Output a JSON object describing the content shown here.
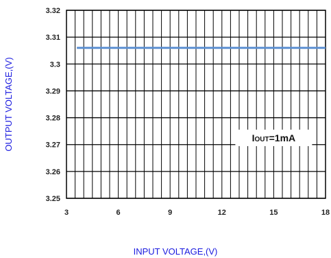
{
  "chart_data": {
    "type": "line",
    "title": "",
    "xlabel": "INPUT VOLTAGE,(V)",
    "ylabel": "OUTPUT VOLTAGE,(V)",
    "xlim": [
      3,
      18
    ],
    "ylim": [
      3.25,
      3.32
    ],
    "x_ticks": [
      3,
      6,
      9,
      12,
      15,
      18
    ],
    "y_ticks": [
      3.25,
      3.26,
      3.27,
      3.28,
      3.29,
      3.3,
      3.31,
      3.32
    ],
    "y_tick_labels": [
      "3.25",
      "3.26",
      "3.27",
      "3.28",
      "3.29",
      "3.3",
      "3.31",
      "3.32"
    ],
    "x_tick_labels": [
      "3",
      "6",
      "9",
      "12",
      "15",
      "18"
    ],
    "grid": true,
    "series": [
      {
        "color": "#5b8fd1",
        "x": [
          3.6,
          18
        ],
        "y": [
          3.306,
          3.306
        ]
      }
    ],
    "annotation": {
      "prefix": "I",
      "sub": "OUT",
      "suffix": "=1mA",
      "x": 15,
      "y": 3.2725
    }
  }
}
